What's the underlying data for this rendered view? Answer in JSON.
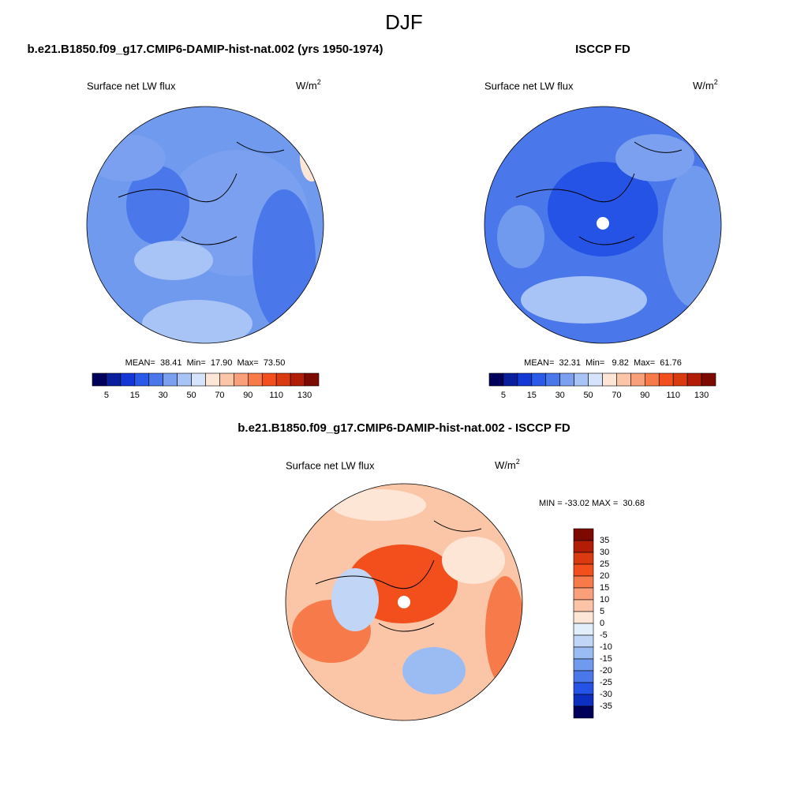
{
  "title": "DJF",
  "panels": [
    {
      "title": "b.e21.B1850.f09_g17.CMIP6-DAMIP-hist-nat.002 (yrs 1950-1974)",
      "variable": "Surface net LW flux",
      "units": "W/m",
      "units_sup": "2",
      "stats": "MEAN=  38.41  Min=  17.90  Max=  73.50"
    },
    {
      "title": "ISCCP FD",
      "variable": "Surface net LW flux",
      "units": "W/m",
      "units_sup": "2",
      "stats": "MEAN=  32.31  Min=   9.82  Max=  61.76"
    }
  ],
  "colorbar": {
    "labels": [
      5,
      15,
      30,
      50,
      70,
      90,
      110,
      130
    ],
    "colors": [
      "#00005a",
      "#0a1f9c",
      "#1438d6",
      "#2a5ae8",
      "#4a78ea",
      "#7aa0ef",
      "#a8c3f5",
      "#d6e4fb",
      "#fde6d6",
      "#fbc6a8",
      "#f9a07b",
      "#f77a4a",
      "#f24f1d",
      "#d93a0f",
      "#b21d05",
      "#7d0a00"
    ]
  },
  "difference": {
    "title": "b.e21.B1850.f09_g17.CMIP6-DAMIP-hist-nat.002 - ISCCP FD",
    "variable": "Surface net LW flux",
    "units": "W/m",
    "units_sup": "2",
    "stats": "MIN = -33.02 MAX =  30.68",
    "colorbar": {
      "labels": [
        35,
        30,
        25,
        20,
        15,
        10,
        5,
        0,
        -5,
        -10,
        -15,
        -20,
        -25,
        -30,
        -35
      ],
      "colors": [
        "#7d0a00",
        "#b21d05",
        "#d93a0f",
        "#f24f1d",
        "#f77a4a",
        "#f9a07b",
        "#fcc3a6",
        "#fde6d6",
        "#e3eefb",
        "#c1d6f7",
        "#9bbcf2",
        "#6f9aee",
        "#4a78ea",
        "#2453e6",
        "#0d2fc0",
        "#00005a"
      ]
    }
  }
}
